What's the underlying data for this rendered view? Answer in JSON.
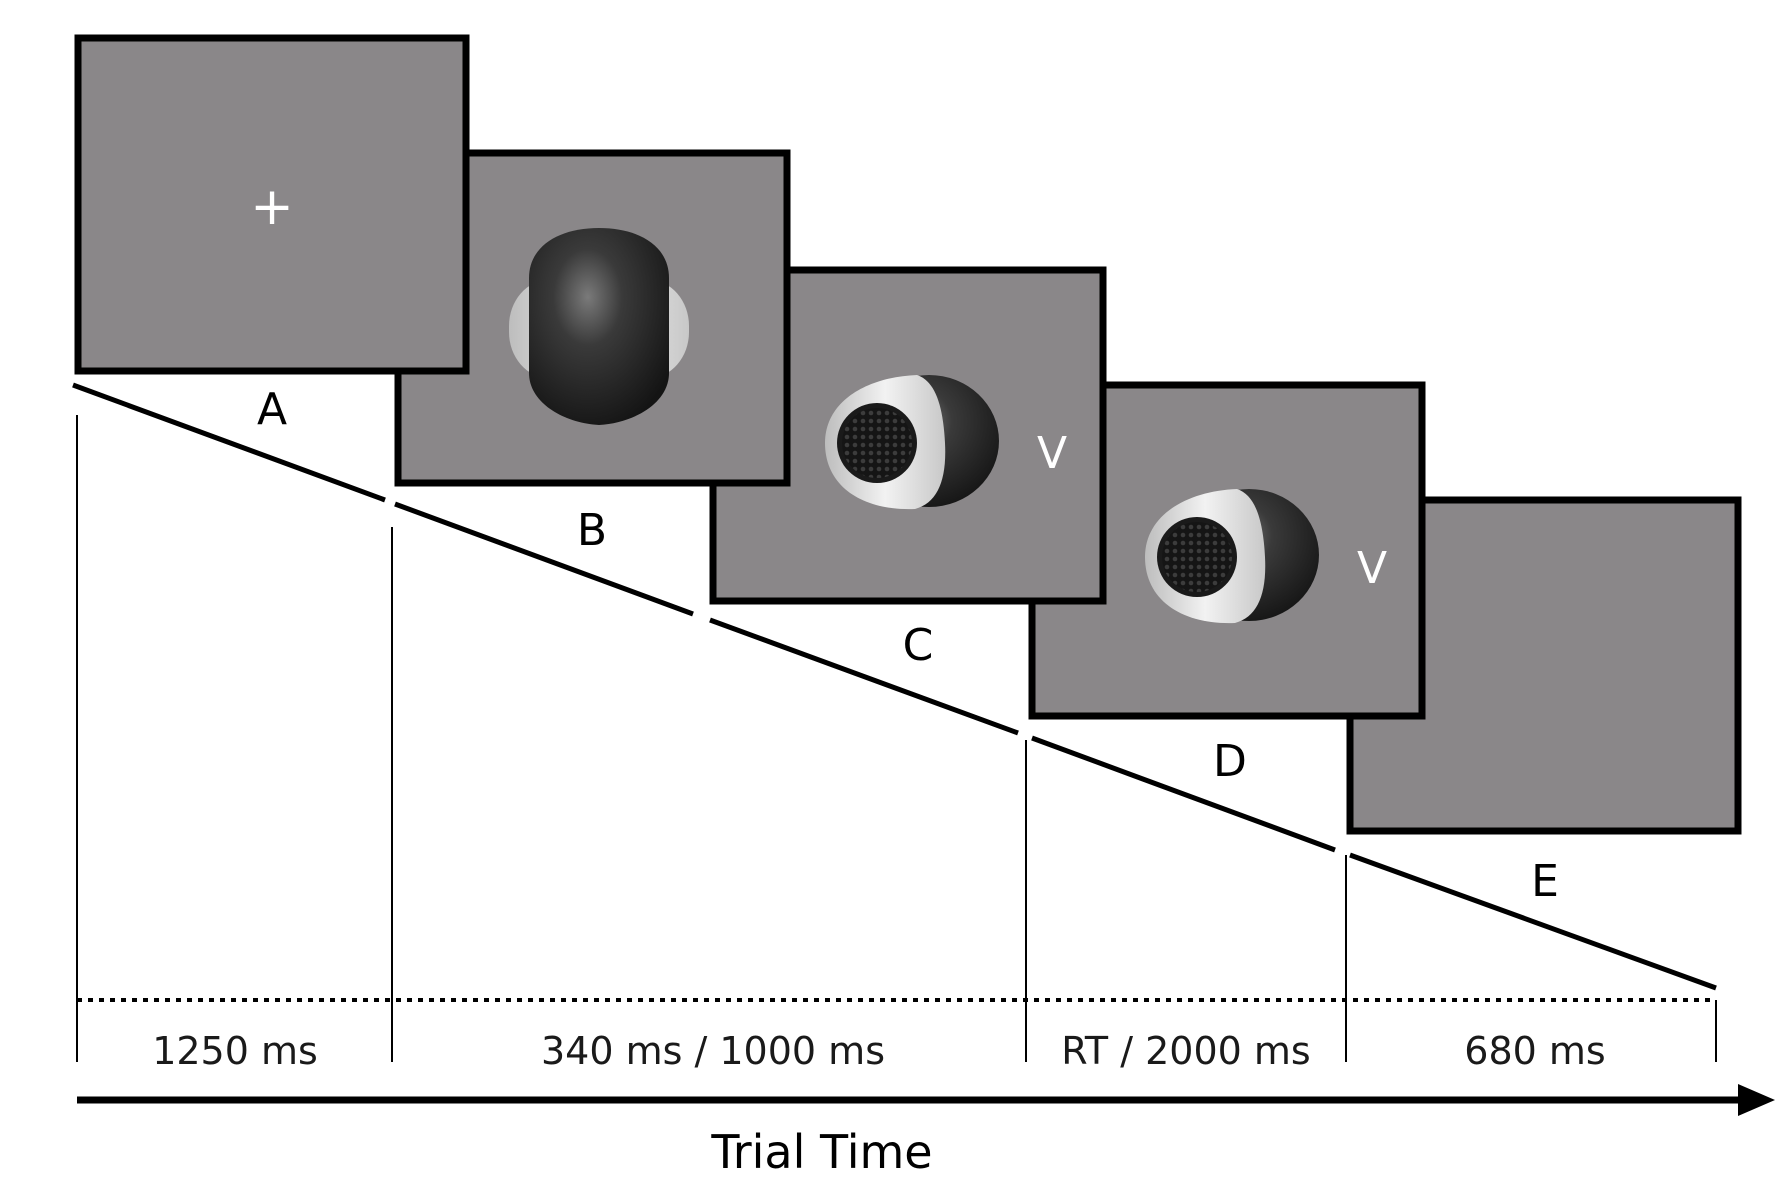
{
  "colors": {
    "screen_fill": "#8a8789",
    "stroke": "#000000",
    "stimulus_dark": "#2a2a2a",
    "stimulus_light": "#dcdcdc"
  },
  "panels": [
    {
      "letter": "A",
      "content": "+"
    },
    {
      "letter": "B",
      "content": "stimulus-front-icon"
    },
    {
      "letter": "C",
      "content": "stimulus-side-icon",
      "key": "V"
    },
    {
      "letter": "D",
      "content": "stimulus-side-icon",
      "key": "V"
    },
    {
      "letter": "E",
      "content": ""
    }
  ],
  "durations": [
    "1250 ms",
    "340 ms / 1000 ms",
    "RT / 2000 ms",
    "680 ms"
  ],
  "axis": {
    "label": "Trial Time"
  }
}
